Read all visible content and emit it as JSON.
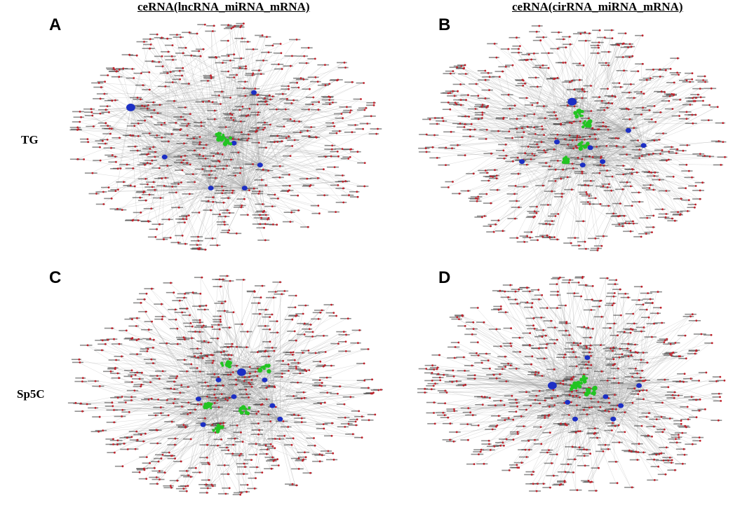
{
  "figure": {
    "column_titles": [
      "ceRNA(lncRNA_miRNA_mRNA)",
      "ceRNA(cirRNA_miRNA_mRNA)"
    ],
    "row_labels": [
      "TG",
      "Sp5C"
    ],
    "panels": [
      {
        "letter": "A",
        "column": "ceRNA(lncRNA_miRNA_mRNA)",
        "row": "TG"
      },
      {
        "letter": "B",
        "column": "ceRNA(cirRNA_miRNA_mRNA)",
        "row": "TG"
      },
      {
        "letter": "C",
        "column": "ceRNA(lncRNA_miRNA_mRNA)",
        "row": "Sp5C"
      },
      {
        "letter": "D",
        "column": "ceRNA(cirRNA_miRNA_mRNA)",
        "row": "Sp5C"
      }
    ]
  },
  "node_colors": {
    "mrna": "#c0202a",
    "mirna": "#1c2fc4",
    "ncrna": "#22c422",
    "edge": "#9a9a9a",
    "label": "#333333"
  }
}
